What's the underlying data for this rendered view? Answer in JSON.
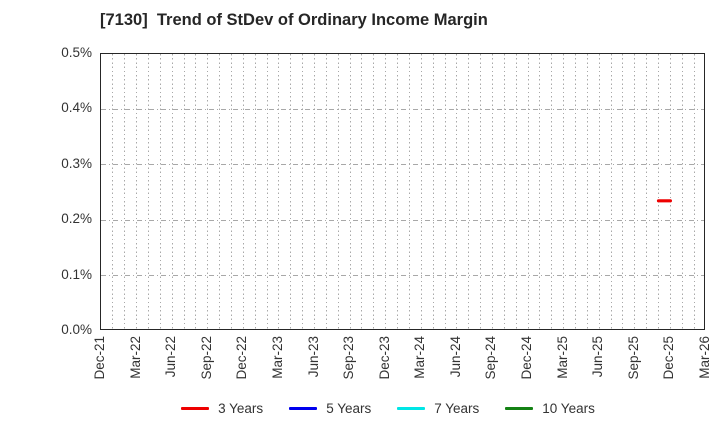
{
  "chart_data": {
    "type": "line",
    "title": "[7130]  Trend of StDev of Ordinary Income Margin",
    "xlabel": "",
    "ylabel": "",
    "x_tick_labels": [
      "Dec-21",
      "Mar-22",
      "Jun-22",
      "Sep-22",
      "Dec-22",
      "Mar-23",
      "Jun-23",
      "Sep-23",
      "Dec-23",
      "Mar-24",
      "Jun-24",
      "Sep-24",
      "Dec-24",
      "Mar-25",
      "Jun-25",
      "Sep-25",
      "Dec-25",
      "Mar-26"
    ],
    "months_per_tick": 3,
    "total_months": 51,
    "y_ticks": [
      {
        "label": "0.0%",
        "value": 0.0
      },
      {
        "label": "0.1%",
        "value": 0.1
      },
      {
        "label": "0.2%",
        "value": 0.2
      },
      {
        "label": "0.3%",
        "value": 0.3
      },
      {
        "label": "0.4%",
        "value": 0.4
      },
      {
        "label": "0.5%",
        "value": 0.5
      }
    ],
    "ylim": [
      0.0,
      0.5
    ],
    "y_unit": "%",
    "grid": {
      "horizontal_style": "dash-dot",
      "vertical_style": "dotted",
      "vertical_interval": "monthly"
    },
    "legend_position": "bottom",
    "series": [
      {
        "name": "3 Years",
        "color": "#ee0000",
        "points": [
          {
            "x": "Nov-25",
            "month_offset": 47,
            "y": 0.235
          },
          {
            "x": "Dec-25",
            "month_offset": 48,
            "y": 0.235
          }
        ]
      },
      {
        "name": "5 Years",
        "color": "#0000ee",
        "points": []
      },
      {
        "name": "7 Years",
        "color": "#00e6e6",
        "points": []
      },
      {
        "name": "10 Years",
        "color": "#148214",
        "points": []
      }
    ]
  },
  "colors": {
    "text": "#333333",
    "title_text": "#262626",
    "grid": "#a8a8a8",
    "spine": "#262626",
    "background": "#ffffff"
  }
}
